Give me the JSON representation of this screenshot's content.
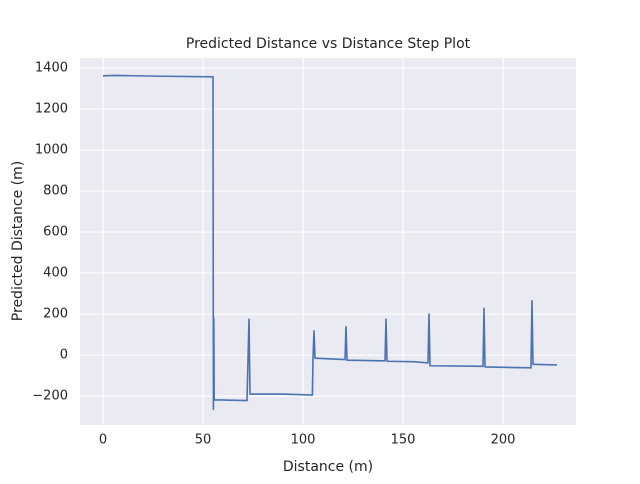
{
  "chart_data": {
    "type": "line",
    "title": "Predicted Distance vs Distance Step Plot",
    "x_label": "Distance (m)",
    "y_label": "Predicted Distance (m)",
    "x": [
      0,
      6,
      30,
      55,
      55.2,
      55.4,
      55.6,
      72,
      73,
      73.5,
      90,
      104.7,
      105,
      105.5,
      106,
      121,
      121.5,
      122,
      141,
      141.5,
      142,
      155,
      162.5,
      163,
      163.5,
      190,
      190.5,
      191,
      214,
      214.5,
      215,
      227
    ],
    "values": [
      1362,
      1364,
      1360,
      1357,
      -265,
      180,
      -218,
      -222,
      175,
      -190,
      -190,
      -195,
      -15,
      118,
      -15,
      -22,
      138,
      -25,
      -28,
      175,
      -30,
      -32,
      -38,
      200,
      -52,
      -55,
      228,
      -58,
      -62,
      265,
      -45,
      -48
    ],
    "color": "#4c72b0",
    "xlim": [
      -11.5,
      236.5
    ],
    "xticks": [
      0,
      50,
      100,
      150,
      200
    ],
    "ylim": [
      -341,
      1449
    ],
    "yticks": [
      {
        "value": -200,
        "label": "−200"
      },
      0,
      200,
      400,
      600,
      800,
      1000,
      1200,
      1400
    ],
    "grid": true
  }
}
